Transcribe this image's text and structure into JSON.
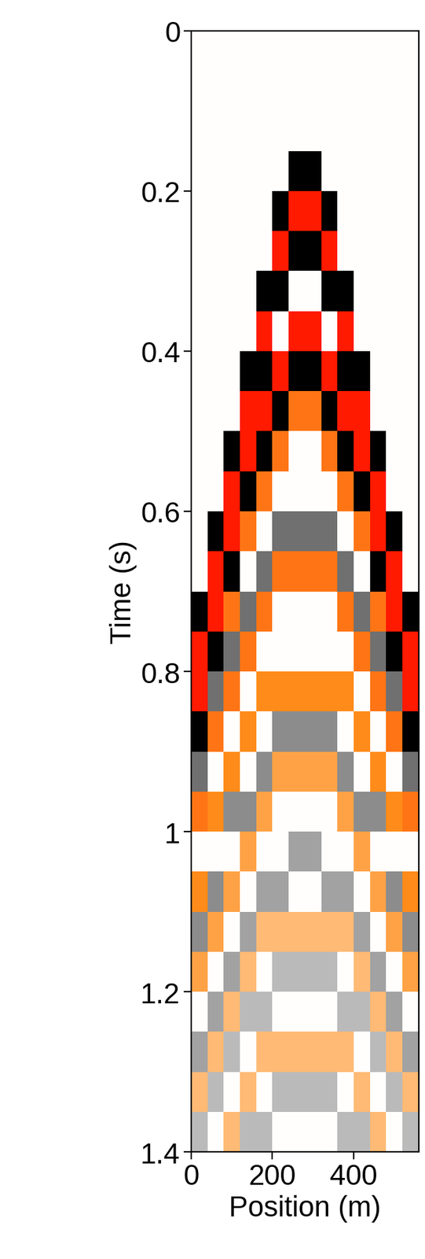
{
  "chart_data": {
    "type": "heatmap",
    "xlabel": "Position (m)",
    "ylabel": "Time (s)",
    "xlim": [
      0,
      560
    ],
    "ylim": [
      1.4,
      0
    ],
    "xticks": [
      0,
      200,
      400
    ],
    "yticks": [
      0,
      0.2,
      0.4,
      0.6,
      0.8,
      1,
      1.2,
      1.4
    ],
    "x_edges": [
      0,
      40,
      80,
      120,
      160,
      200,
      240,
      280,
      320,
      360,
      400,
      440,
      480,
      520,
      560
    ],
    "y_edges": [
      0,
      0.05,
      0.1,
      0.15,
      0.2,
      0.25,
      0.3,
      0.35,
      0.4,
      0.45,
      0.5,
      0.55,
      0.6,
      0.65,
      0.7,
      0.75,
      0.8,
      0.85,
      0.9,
      0.95,
      1.0,
      1.05,
      1.1,
      1.15,
      1.2,
      1.25,
      1.3,
      1.35,
      1.4
    ],
    "clim": [
      -1,
      1
    ],
    "colors": [
      "#000000",
      "#8c8c8c",
      "#ffffff",
      "#ff8c1a",
      "#ff1a00"
    ],
    "cells": [
      [
        0,
        0,
        0,
        0,
        0,
        0,
        0,
        0,
        0,
        0,
        0,
        0,
        0,
        0
      ],
      [
        0,
        0,
        0,
        0,
        0,
        0,
        0,
        0,
        0,
        0,
        0,
        0,
        0,
        0
      ],
      [
        0,
        0,
        0,
        0,
        0,
        0,
        0,
        0,
        0,
        0,
        0,
        0,
        0,
        0
      ],
      [
        0,
        0,
        0,
        0,
        0,
        0,
        -1,
        -1,
        0,
        0,
        0,
        0,
        0,
        0
      ],
      [
        0,
        0,
        0,
        0,
        0,
        -1,
        1,
        1,
        -1,
        0,
        0,
        0,
        0,
        0
      ],
      [
        0,
        0,
        0,
        0,
        0,
        1,
        -1,
        -1,
        1,
        0,
        0,
        0,
        0,
        0
      ],
      [
        0,
        0,
        0,
        0,
        -1,
        -1,
        0,
        0,
        -1,
        -1,
        0,
        0,
        0,
        0
      ],
      [
        0,
        0,
        0,
        0,
        1,
        0,
        1,
        1,
        0,
        1,
        0,
        0,
        0,
        0
      ],
      [
        0,
        0,
        0,
        -1,
        -1,
        1,
        -1,
        -1,
        1,
        -1,
        -1,
        0,
        0,
        0
      ],
      [
        0,
        0,
        0,
        1,
        1,
        -1,
        0.6,
        0.6,
        -1,
        1,
        1,
        0,
        0,
        0
      ],
      [
        0,
        0,
        -1,
        1,
        -1,
        0.6,
        0,
        0,
        0.6,
        -1,
        1,
        -1,
        0,
        0
      ],
      [
        0,
        0,
        1,
        -1,
        0.6,
        0,
        0,
        0,
        0,
        0.6,
        -1,
        1,
        0,
        0
      ],
      [
        0,
        -1,
        1,
        0.6,
        0,
        -0.6,
        -0.6,
        -0.6,
        -0.6,
        0,
        0.6,
        1,
        -1,
        0
      ],
      [
        0,
        1,
        -1,
        0,
        -0.6,
        0.6,
        0.6,
        0.6,
        0.6,
        -0.6,
        0,
        -1,
        1,
        0
      ],
      [
        -1,
        1,
        0.6,
        -0.6,
        0.6,
        0,
        0,
        0,
        0,
        0.6,
        -0.6,
        0.6,
        1,
        -1
      ],
      [
        1,
        -1,
        -0.6,
        0.6,
        0,
        0,
        0,
        0,
        0,
        0,
        0.6,
        -0.6,
        -1,
        1
      ],
      [
        1,
        -0.6,
        0.6,
        0,
        0.5,
        0.5,
        0.5,
        0.5,
        0.5,
        0.5,
        0,
        0.6,
        -0.6,
        1
      ],
      [
        -1,
        0.6,
        0,
        0.5,
        0,
        -0.5,
        -0.5,
        -0.5,
        -0.5,
        0,
        0.5,
        0,
        0.6,
        -1
      ],
      [
        -0.6,
        0,
        0.5,
        0,
        -0.5,
        0.4,
        0.4,
        0.4,
        0.4,
        -0.5,
        0,
        0.5,
        0,
        -0.6
      ],
      [
        0.6,
        0.5,
        -0.5,
        -0.5,
        0.4,
        0,
        0,
        0,
        0,
        0.4,
        -0.5,
        -0.5,
        0.5,
        0.6
      ],
      [
        0,
        0,
        0,
        0.4,
        0,
        0,
        -0.4,
        -0.4,
        0,
        0,
        0.4,
        0,
        0,
        0
      ],
      [
        0.5,
        -0.5,
        0.4,
        0,
        -0.4,
        -0.4,
        0,
        0,
        -0.4,
        -0.4,
        0,
        0.4,
        -0.5,
        0.5
      ],
      [
        -0.5,
        0.4,
        0,
        -0.4,
        0.3,
        0.3,
        0.3,
        0.3,
        0.3,
        0.3,
        -0.4,
        0,
        0.4,
        -0.5
      ],
      [
        0.4,
        0,
        -0.4,
        0.3,
        0,
        -0.3,
        -0.3,
        -0.3,
        -0.3,
        0,
        0.3,
        -0.4,
        0,
        0.4
      ],
      [
        0,
        -0.4,
        0.3,
        -0.3,
        -0.3,
        0,
        0,
        0,
        0,
        -0.3,
        -0.3,
        0.3,
        -0.4,
        0
      ],
      [
        -0.4,
        0.3,
        -0.3,
        0,
        0.3,
        0.3,
        0.3,
        0.3,
        0.3,
        0.3,
        0,
        -0.3,
        0.3,
        -0.4
      ],
      [
        0.3,
        -0.3,
        0,
        0.3,
        0,
        -0.3,
        -0.3,
        -0.3,
        -0.3,
        0,
        0.3,
        0,
        -0.3,
        0.3
      ],
      [
        -0.3,
        0,
        0.3,
        -0.3,
        -0.3,
        0,
        0,
        0,
        0,
        -0.3,
        -0.3,
        0.3,
        0,
        -0.3
      ]
    ]
  }
}
